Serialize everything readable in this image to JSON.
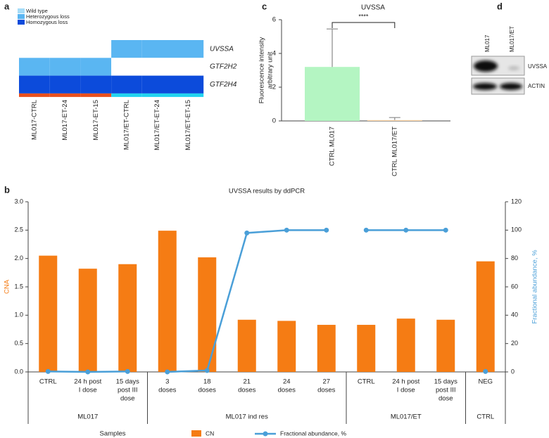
{
  "panel_labels": [
    "a",
    "b",
    "c",
    "d"
  ],
  "chart_data": [
    {
      "type": "heatmap",
      "legend": [
        "Wild type",
        "Heterozygous loss",
        "Homozygous loss"
      ],
      "colors": [
        "#a6dcf8",
        "#5ab6f2",
        "#0c4bdb"
      ],
      "rows": [
        "UVSSA",
        "GTF2H2",
        "GTF2H4"
      ],
      "columns": [
        "ML017-CTRL",
        "ML017-ET-24",
        "ML017-ET-15",
        "ML017/ET-CTRL",
        "ML017/ET-ET-24",
        "ML017/ET-ET-15"
      ],
      "values": [
        [
          null,
          null,
          null,
          1,
          1,
          1
        ],
        [
          1,
          1,
          1,
          null,
          null,
          null
        ],
        [
          2,
          2,
          2,
          2,
          2,
          2
        ]
      ],
      "column_colors": [
        "#e8501e",
        "#e8501e",
        "#e8501e",
        "#22d3f0",
        "#22d3f0",
        "#22d3f0"
      ]
    },
    {
      "type": "combo",
      "title": "UVSSA results by ddPCR",
      "xlabel": "Samples",
      "ylabel": "CNA",
      "y2label": "Fractional abundance, %",
      "categories": [
        [
          "CTRL"
        ],
        [
          "24 h post",
          "I dose"
        ],
        [
          "15 days",
          "post III",
          "dose"
        ],
        [
          "3",
          "doses"
        ],
        [
          "18",
          "doses"
        ],
        [
          "21",
          "doses"
        ],
        [
          "24",
          "doses"
        ],
        [
          "27",
          "doses"
        ],
        [
          "CTRL"
        ],
        [
          "24 h post",
          "I dose"
        ],
        [
          "15 days",
          "post III",
          "dose"
        ],
        [
          "NEG"
        ]
      ],
      "groups": [
        {
          "name": "ML017",
          "categories": 3
        },
        {
          "name": "ML017 ind res",
          "categories": 5
        },
        {
          "name": "ML017/ET",
          "categories": 3
        },
        {
          "name": "CTRL",
          "categories": 1
        }
      ],
      "series": [
        {
          "name": "CN",
          "type": "bar",
          "color": "#f57c14",
          "values": [
            2.05,
            1.82,
            1.9,
            2.49,
            2.02,
            0.92,
            0.9,
            0.83,
            0.83,
            0.94,
            0.92,
            1.95
          ]
        },
        {
          "name": "Fractional abundance, %",
          "type": "line",
          "axis": "y2",
          "color": "#4a9fd8",
          "values": [
            0.3,
            0,
            0.3,
            0,
            1,
            98,
            100,
            100,
            100,
            100,
            100,
            0.3
          ]
        }
      ],
      "line_breaks_at_groups": true,
      "ylim": [
        0,
        3
      ],
      "yticks": [
        {
          "value": 0,
          "label": "0.0"
        },
        {
          "value": 0.5,
          "label": "0.5"
        },
        {
          "value": 1,
          "label": "1.0"
        },
        {
          "value": 1.5,
          "label": "1.5"
        },
        {
          "value": 2,
          "label": "2.0"
        },
        {
          "value": 2.5,
          "label": "2.5"
        },
        {
          "value": 3,
          "label": "3.0"
        }
      ],
      "y2lim": [
        0,
        120
      ],
      "y2ticks": [
        0,
        20,
        40,
        60,
        80,
        100,
        120
      ]
    },
    {
      "type": "bar",
      "title": "UVSSA",
      "ylabel": [
        "Fluorescence intensity",
        "arbitrary unit"
      ],
      "categories": [
        "CTRL ML017",
        "CTRL ML017/ET"
      ],
      "values": [
        3.2,
        0.05
      ],
      "errors": [
        2.25,
        0.15
      ],
      "colors": [
        "#b4f5c2",
        "#fdd4a4"
      ],
      "ylim": [
        0,
        6
      ],
      "yticks": [
        0,
        2,
        4,
        6
      ],
      "annotation": "****"
    }
  ],
  "blot": {
    "lanes": [
      "ML017",
      "ML017/ET"
    ],
    "bands": [
      "UVSSA",
      "ACTIN"
    ]
  }
}
